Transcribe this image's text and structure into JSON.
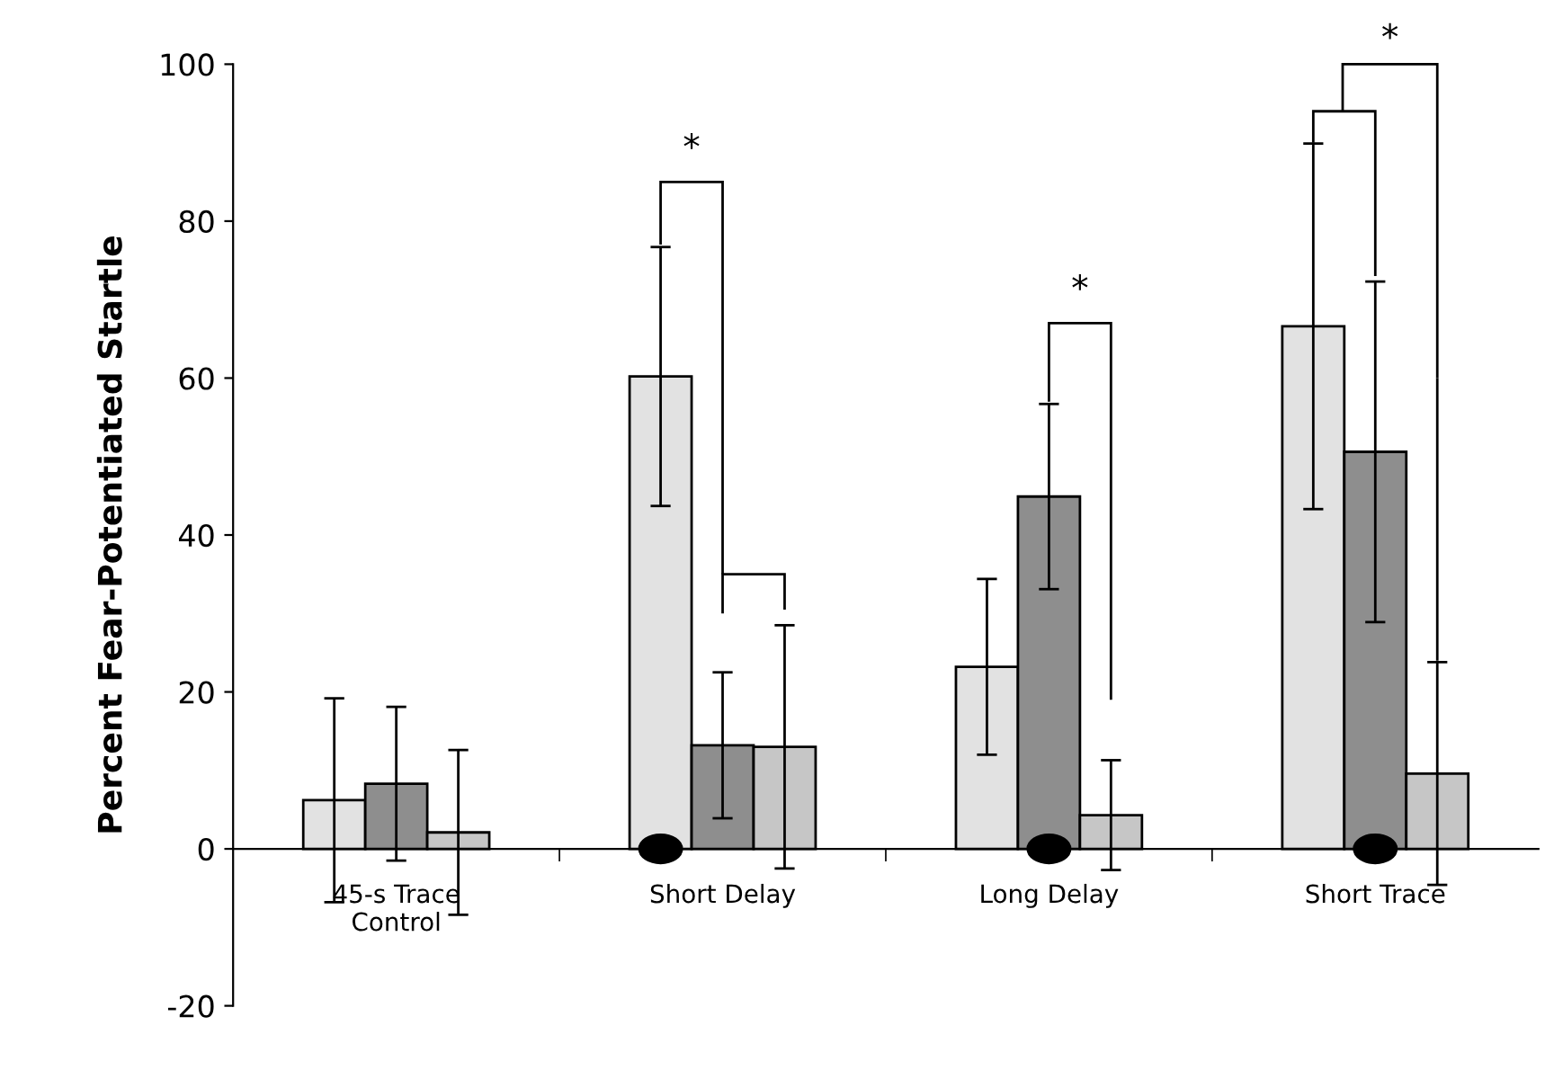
{
  "chart_data": {
    "type": "bar",
    "ylabel": "Percent Fear-Potentiated Startle",
    "categories": [
      "45-s Trace\nControl",
      "Short Delay",
      "Long Delay",
      "Short Trace"
    ],
    "series": [
      {
        "color": "#e2e2e2",
        "values": [
          6.2,
          60.2,
          23.2,
          66.6
        ],
        "errors": [
          13,
          16.5,
          11.2,
          23.3
        ]
      },
      {
        "color": "#8e8e8e",
        "values": [
          8.3,
          13.2,
          44.9,
          50.6
        ],
        "errors": [
          9.8,
          9.3,
          11.8,
          21.7
        ]
      },
      {
        "color": "#c6c6c6",
        "values": [
          2.1,
          13,
          4.3,
          9.6
        ],
        "errors": [
          10.5,
          15.5,
          7,
          14.2
        ]
      }
    ],
    "ylim": [
      -20,
      100
    ],
    "yticks": [
      -20,
      0,
      20,
      40,
      60,
      80,
      100
    ],
    "grid": false,
    "annotations": [
      "*",
      "*",
      "*"
    ]
  }
}
